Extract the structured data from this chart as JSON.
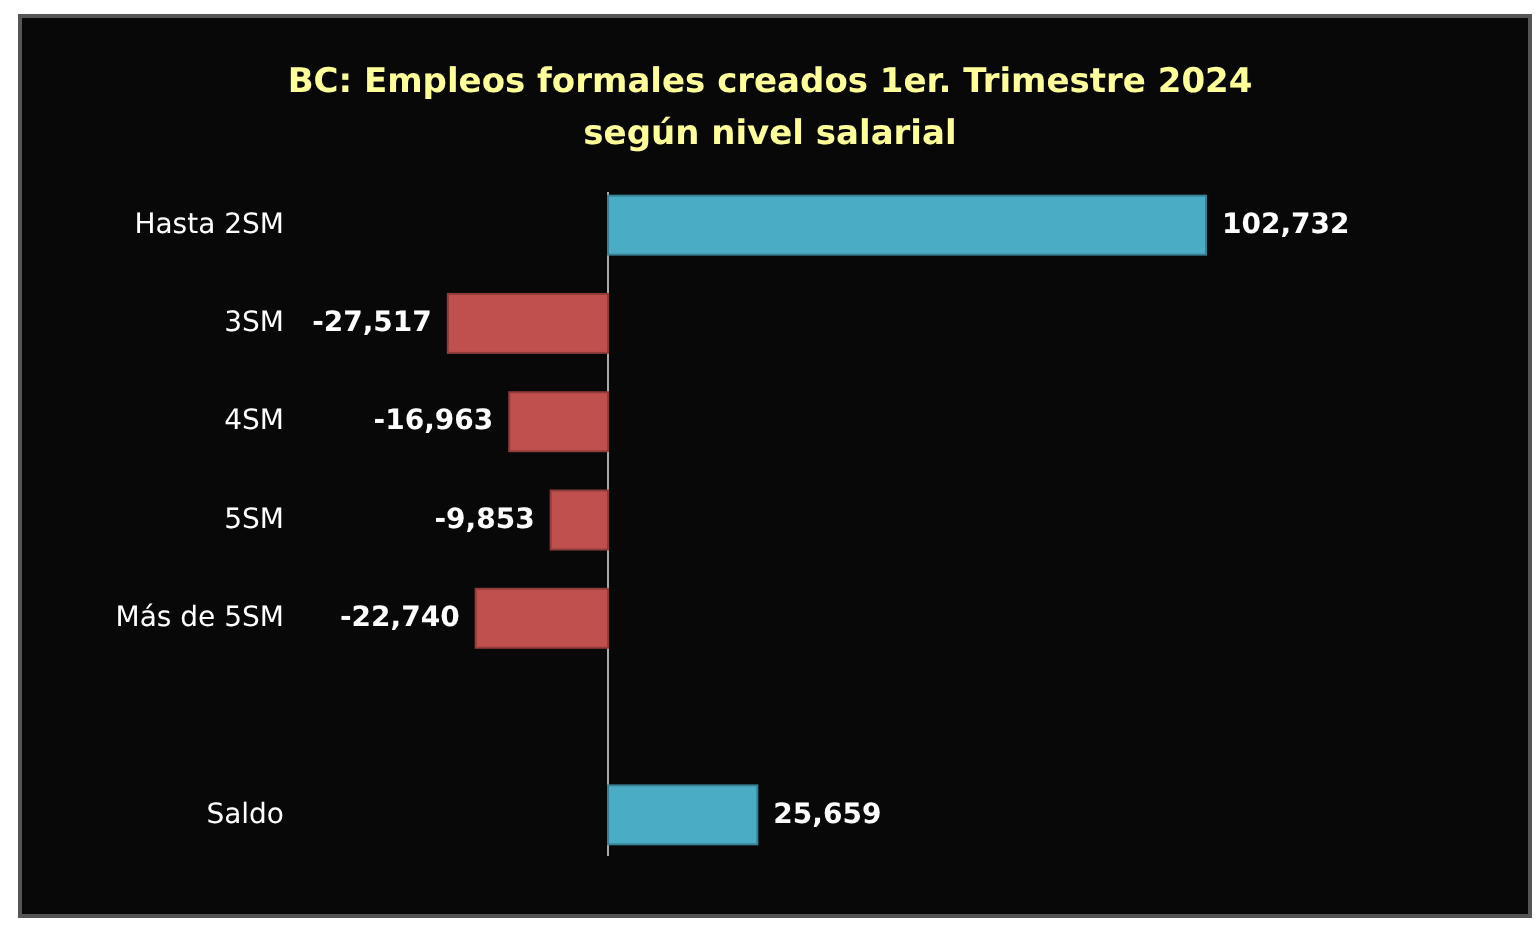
{
  "chart_data": {
    "type": "bar",
    "orientation": "horizontal",
    "title": "BC: Empleos formales creados 1er. Trimestre 2024",
    "subtitle": "según nivel salarial",
    "categories": [
      "Hasta 2SM",
      "3SM",
      "4SM",
      "5SM",
      "Más de 5SM",
      null,
      "Saldo"
    ],
    "values": [
      102732,
      -27517,
      -16963,
      -9853,
      -22740,
      null,
      25659
    ],
    "colors": [
      "#4bacc6",
      "#c0504d",
      "#c0504d",
      "#c0504d",
      "#c0504d",
      null,
      "#4bacc6"
    ],
    "value_labels": [
      "102,732",
      "-27,517",
      "-16,963",
      "-9,853",
      "-22,740",
      null,
      "25,659"
    ]
  }
}
